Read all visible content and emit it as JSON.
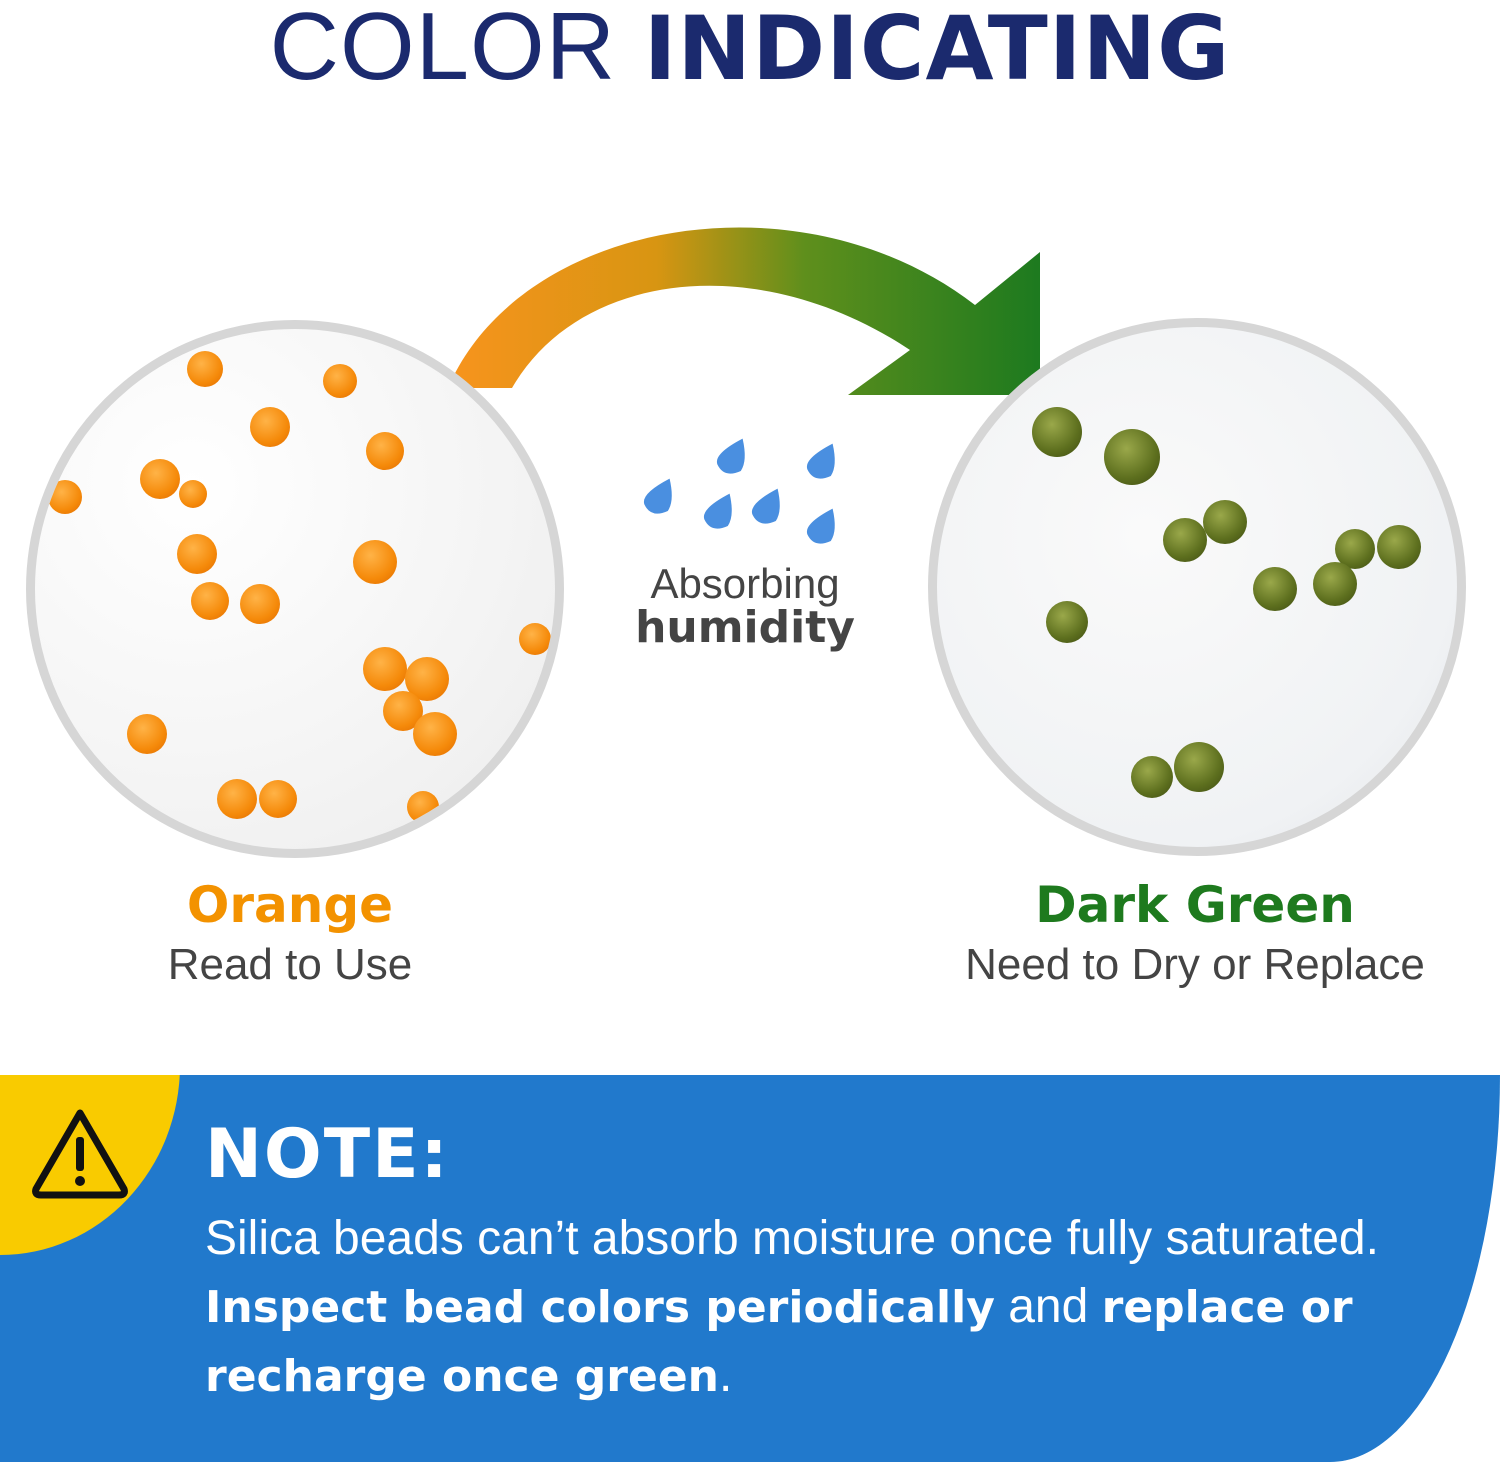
{
  "title": {
    "light": "COLOR ",
    "bold": "INDICATING"
  },
  "middle": {
    "line1": "Absorbing",
    "line2": "humidity",
    "icon": "water-drops-icon"
  },
  "left": {
    "heading": "Orange",
    "subtext": "Read to Use",
    "color": "#f39200"
  },
  "right": {
    "heading": "Dark Green",
    "subtext": "Need to Dry or Replace",
    "color": "#1e7a1e"
  },
  "note": {
    "title": "NOTE:",
    "icon": "warning-triangle-icon",
    "t1": "Silica beads can’t absorb moisture once fully saturated. ",
    "b1": "Inspect bead colors periodically",
    "t2": " and ",
    "b2": "replace or recharge once green",
    "t3": ".",
    "bg": "#2179cc",
    "accent": "#f9cb00"
  }
}
